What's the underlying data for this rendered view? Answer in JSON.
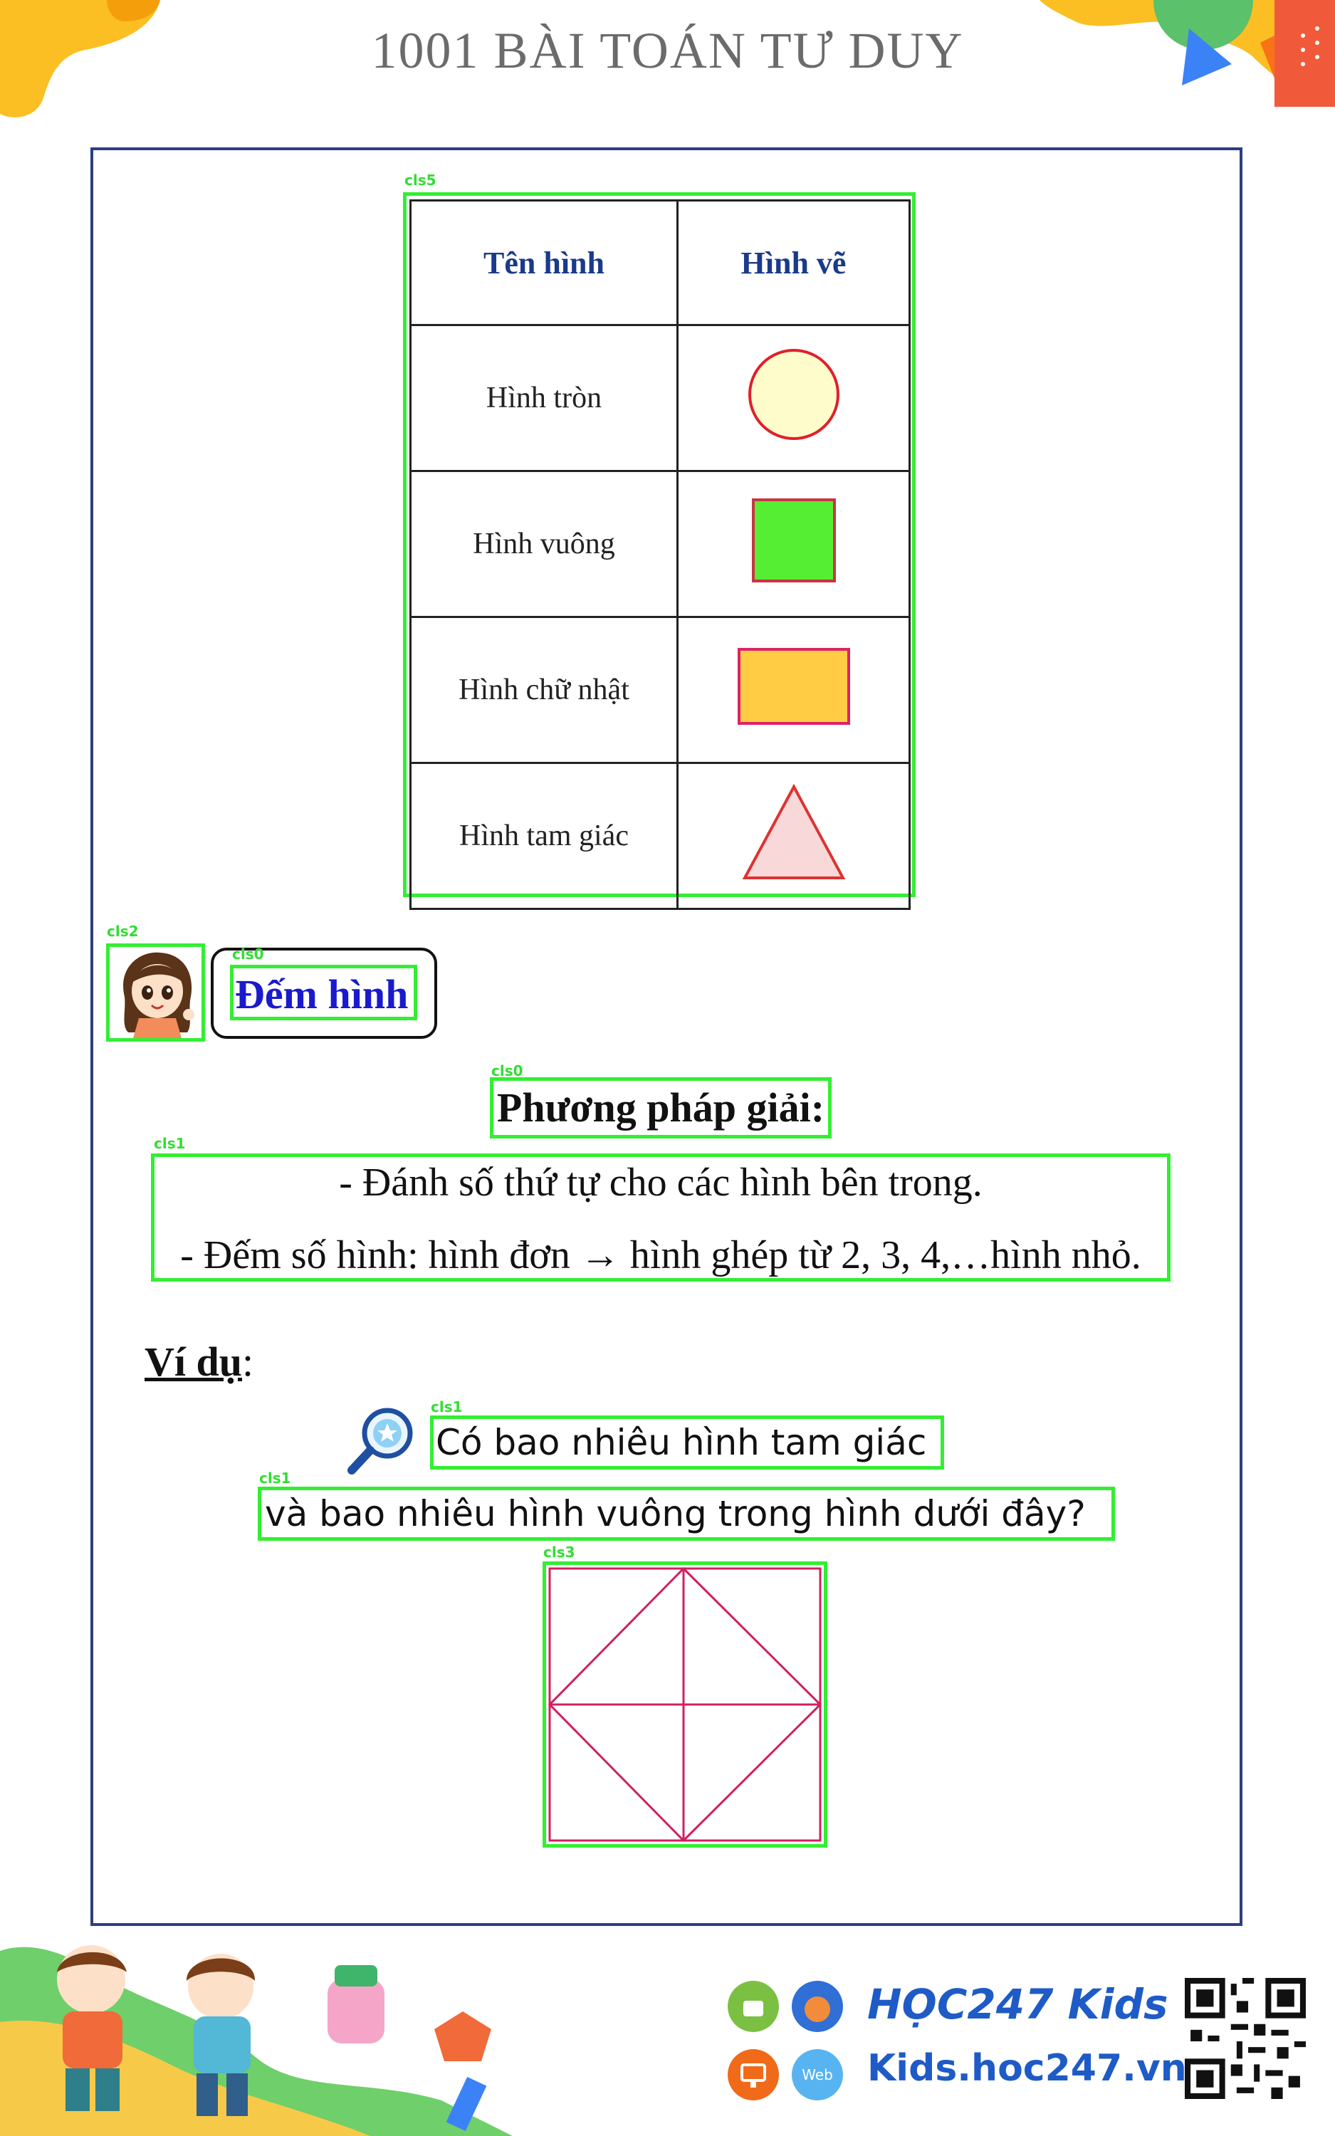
{
  "header": {
    "title": "1001 BÀI TOÁN TƯ DUY"
  },
  "detections": {
    "table": "cls5",
    "avatar": "cls2",
    "dem_hinh": "cls0",
    "pp_title": "cls0",
    "method": "cls1",
    "question_line1": "cls1",
    "question_line2": "cls1",
    "figure": "cls3"
  },
  "table": {
    "headers": [
      "Tên hình",
      "Hình vẽ"
    ],
    "rows": [
      {
        "name": "Hình tròn",
        "shape": "circle"
      },
      {
        "name": "Hình vuông",
        "shape": "square"
      },
      {
        "name": "Hình chữ nhật",
        "shape": "rectangle"
      },
      {
        "name": "Hình tam giác",
        "shape": "triangle"
      }
    ]
  },
  "section": {
    "title": "Đếm hình"
  },
  "method": {
    "title": "Phương pháp giải:",
    "line1": "- Đánh số thứ tự cho các hình bên trong.",
    "line2": "- Đếm số hình: hình đơn → hình ghép từ 2, 3, 4,…hình nhỏ."
  },
  "example": {
    "label": "Ví dụ",
    "colon": ":",
    "question_line1": "Có bao nhiêu hình tam giác",
    "question_line2": "và bao nhiêu hình vuông trong hình dưới đây?"
  },
  "footer": {
    "brand": "HỌC247 Kids",
    "url": "Kids.hoc247.vn",
    "web_badge": "Web"
  },
  "colors": {
    "frame": "#2c3e80",
    "detection": "#33ee33",
    "circle_fill": "#fffccc",
    "circle_stroke": "#e0202a",
    "square_fill": "#55ee33",
    "square_stroke": "#cc3344",
    "rect_fill": "#ffcc44",
    "rect_stroke": "#dd2266",
    "triangle_fill": "#f8d8d8",
    "triangle_stroke": "#dd3333",
    "figure_stroke": "#d02060",
    "brand_blue": "#1e5bc7"
  }
}
